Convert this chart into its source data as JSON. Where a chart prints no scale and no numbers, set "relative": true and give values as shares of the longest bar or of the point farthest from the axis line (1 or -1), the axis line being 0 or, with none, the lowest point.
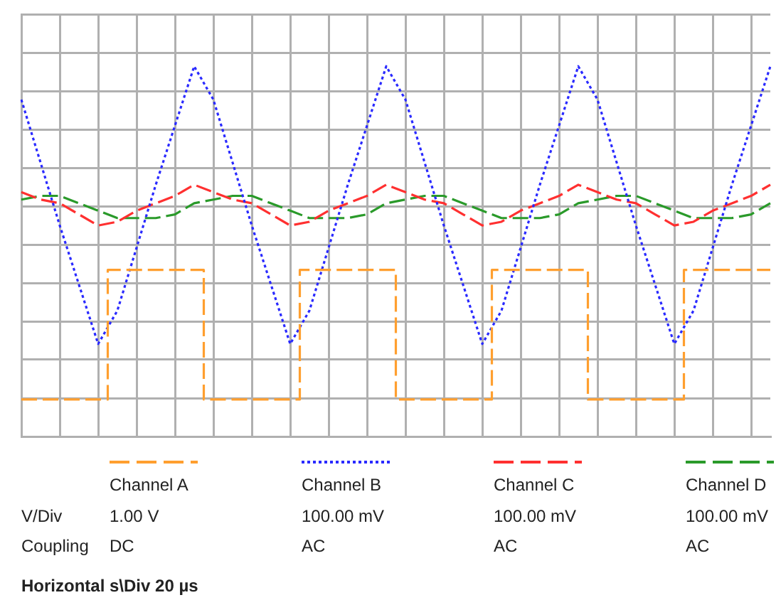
{
  "chart_data": {
    "type": "line",
    "relative": true,
    "categories": [
      null,
      null,
      null,
      null,
      null,
      null,
      null,
      null,
      null,
      null,
      null,
      null,
      null,
      null,
      null,
      null,
      null,
      null,
      null,
      null,
      null,
      null,
      null,
      null,
      null,
      null,
      null,
      null,
      null,
      null,
      null,
      null,
      null,
      null,
      null,
      null,
      null,
      null,
      null,
      null
    ],
    "grid": true,
    "legend": "bottom",
    "series": [
      {
        "name": "Channel A",
        "type": "step",
        "color": "#ff9f2f",
        "line_style": "dashed",
        "values": [
          0.1,
          0.1,
          0.1,
          0.1,
          0.1,
          0.45,
          0.45,
          0.45,
          0.45,
          0.45,
          0.1,
          0.1,
          0.1,
          0.1,
          0.1,
          0.45,
          0.45,
          0.45,
          0.45,
          0.45,
          0.1,
          0.1,
          0.1,
          0.1,
          0.1,
          0.45,
          0.45,
          0.45,
          0.45,
          0.45,
          0.1,
          0.1,
          0.1,
          0.1,
          0.1,
          0.45,
          0.45,
          0.45,
          0.45,
          0.45
        ]
      },
      {
        "name": "Channel B",
        "color": "#2a2aff",
        "line_style": "dotted",
        "values": [
          0.91,
          0.74,
          0.57,
          0.41,
          0.25,
          0.34,
          0.51,
          0.68,
          0.84,
          1,
          0.91,
          0.74,
          0.57,
          0.41,
          0.25,
          0.34,
          0.51,
          0.68,
          0.84,
          1,
          0.91,
          0.74,
          0.57,
          0.41,
          0.25,
          0.34,
          0.51,
          0.68,
          0.84,
          1,
          0.91,
          0.74,
          0.57,
          0.41,
          0.25,
          0.34,
          0.51,
          0.68,
          0.84,
          1
        ]
      },
      {
        "name": "Channel C",
        "color": "#ff3030",
        "line_style": "dashed",
        "values": [
          0.66,
          0.64,
          0.63,
          0.6,
          0.57,
          0.58,
          0.61,
          0.63,
          0.65,
          0.68,
          0.66,
          0.64,
          0.63,
          0.6,
          0.57,
          0.58,
          0.61,
          0.63,
          0.65,
          0.68,
          0.66,
          0.64,
          0.63,
          0.6,
          0.57,
          0.58,
          0.61,
          0.63,
          0.65,
          0.68,
          0.66,
          0.64,
          0.63,
          0.6,
          0.57,
          0.58,
          0.61,
          0.63,
          0.65,
          0.68
        ]
      },
      {
        "name": "Channel D",
        "color": "#2a9a2a",
        "line_style": "dashed",
        "values": [
          0.64,
          0.65,
          0.65,
          0.63,
          0.61,
          0.59,
          0.59,
          0.59,
          0.6,
          0.63,
          0.64,
          0.65,
          0.65,
          0.63,
          0.61,
          0.59,
          0.59,
          0.59,
          0.6,
          0.63,
          0.64,
          0.65,
          0.65,
          0.63,
          0.61,
          0.59,
          0.59,
          0.59,
          0.6,
          0.63,
          0.64,
          0.65,
          0.65,
          0.63,
          0.61,
          0.59,
          0.59,
          0.59,
          0.6,
          0.63
        ]
      }
    ],
    "annotations": [
      "V/Div",
      "1.00 V",
      "100.00 mV",
      "100.00 mV",
      "100.00 mV",
      "Coupling",
      "DC",
      "AC",
      "AC",
      "AC",
      "Horizontal s\\Div 20 µs"
    ]
  }
}
